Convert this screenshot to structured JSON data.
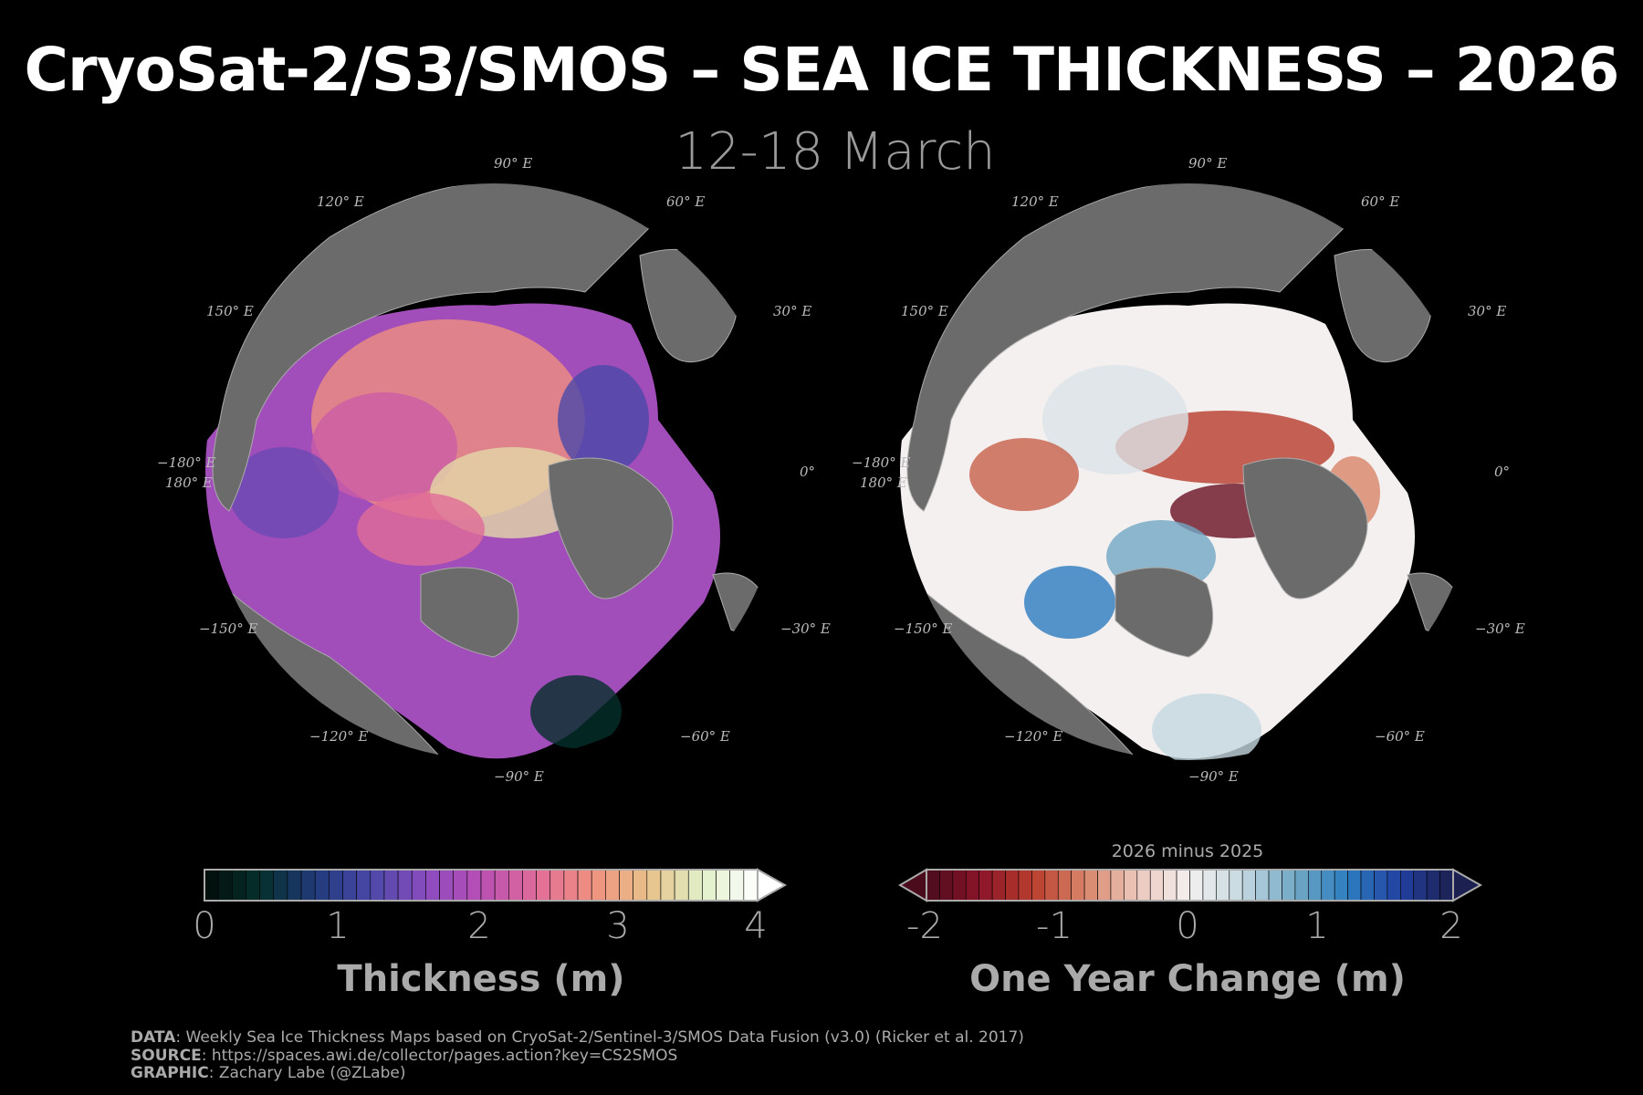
{
  "title": "CryoSat-2/S3/SMOS – SEA ICE THICKNESS – 2026",
  "subtitle": "12-18 March",
  "longitude_labels": {
    "e90": "90° E",
    "e120": "120° E",
    "e60": "60° E",
    "e150": "150° E",
    "e30": "30° E",
    "w180a": "−180° E",
    "w180b": "180° E",
    "e0": "0°",
    "w150": "−150° E",
    "w30": "−30° E",
    "w120": "−120° E",
    "w60": "−60° E",
    "w90": "−90° E"
  },
  "colors": {
    "land": "#6b6b6b",
    "ocean": "#000000",
    "background": "#000000"
  },
  "chart_data": [
    {
      "type": "heatmap",
      "projection": "north-polar-stereographic",
      "variable": "sea ice thickness",
      "colorbar": {
        "label": "Thickness (m)",
        "ticks": [
          "0",
          "1",
          "2",
          "3",
          "4"
        ],
        "range": [
          0,
          4
        ],
        "extend": "max",
        "colormap": [
          "#020d08",
          "#05302c",
          "#203a7a",
          "#4a48a8",
          "#8a4cc0",
          "#b84eb4",
          "#e06c98",
          "#f09080",
          "#e8c088",
          "#e0f0c8",
          "#ffffff"
        ]
      }
    },
    {
      "type": "heatmap",
      "projection": "north-polar-stereographic",
      "variable": "one year change in sea ice thickness",
      "colorbar": {
        "note": "2026 minus 2025",
        "label": "One Year Change (m)",
        "ticks": [
          "-2",
          "-1",
          "0",
          "1",
          "2"
        ],
        "range": [
          -2,
          2
        ],
        "extend": "both",
        "colormap": [
          "#4a0c1c",
          "#8a1428",
          "#b83c2c",
          "#d88468",
          "#ecc8bc",
          "#f4f0f0",
          "#c4d8e0",
          "#70a8c4",
          "#2c7cc0",
          "#2240a0",
          "#1c2050"
        ]
      }
    }
  ],
  "footer": {
    "data_key": "DATA",
    "data_text": ": Weekly Sea Ice Thickness Maps based on CryoSat-2/Sentinel-3/SMOS Data Fusion (v3.0) (Ricker et al. 2017)",
    "source_key": "SOURCE",
    "source_text": ": https://spaces.awi.de/collector/pages.action?key=CS2SMOS",
    "graphic_key": "GRAPHIC",
    "graphic_text": ": Zachary Labe (@ZLabe)"
  }
}
